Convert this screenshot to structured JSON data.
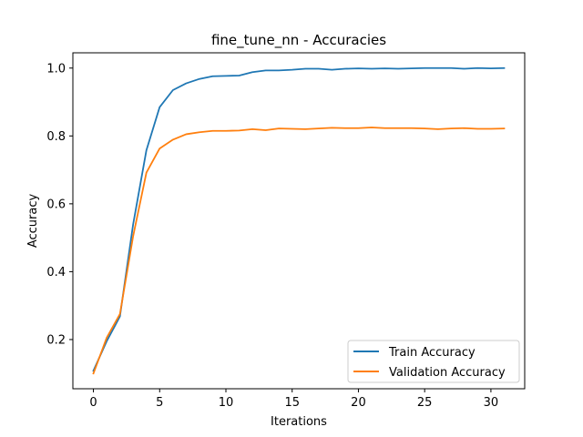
{
  "chart_data": {
    "type": "line",
    "title": "fine_tune_nn - Accuracies",
    "xlabel": "Iterations",
    "ylabel": "Accuracy",
    "xlim": [
      -1.55,
      32.55
    ],
    "ylim": [
      0.055,
      1.045
    ],
    "xticks": [
      0,
      5,
      10,
      15,
      20,
      25,
      30
    ],
    "xtick_labels": [
      "0",
      "5",
      "10",
      "15",
      "20",
      "25",
      "30"
    ],
    "yticks": [
      0.2,
      0.4,
      0.6,
      0.8,
      1.0
    ],
    "ytick_labels": [
      "0.2",
      "0.4",
      "0.6",
      "0.8",
      "1.0"
    ],
    "grid": false,
    "legend_position": "lower-right",
    "x": [
      0,
      1,
      2,
      3,
      4,
      5,
      6,
      7,
      8,
      9,
      10,
      11,
      12,
      13,
      14,
      15,
      16,
      17,
      18,
      19,
      20,
      21,
      22,
      23,
      24,
      25,
      26,
      27,
      28,
      29,
      30,
      31
    ],
    "series": [
      {
        "name": "Train Accuracy",
        "color": "#1f77b4",
        "values": [
          0.108,
          0.195,
          0.268,
          0.54,
          0.758,
          0.885,
          0.935,
          0.955,
          0.968,
          0.976,
          0.977,
          0.978,
          0.988,
          0.993,
          0.993,
          0.995,
          0.998,
          0.998,
          0.995,
          0.998,
          0.999,
          0.998,
          0.999,
          0.998,
          0.999,
          1.0,
          1.0,
          1.0,
          0.998,
          1.0,
          0.999,
          1.0
        ]
      },
      {
        "name": "Validation Accuracy",
        "color": "#ff7f0e",
        "values": [
          0.1,
          0.205,
          0.275,
          0.505,
          0.692,
          0.763,
          0.789,
          0.805,
          0.811,
          0.815,
          0.815,
          0.816,
          0.82,
          0.817,
          0.822,
          0.821,
          0.82,
          0.822,
          0.824,
          0.823,
          0.823,
          0.825,
          0.823,
          0.823,
          0.823,
          0.822,
          0.82,
          0.822,
          0.823,
          0.821,
          0.821,
          0.822
        ]
      }
    ]
  }
}
